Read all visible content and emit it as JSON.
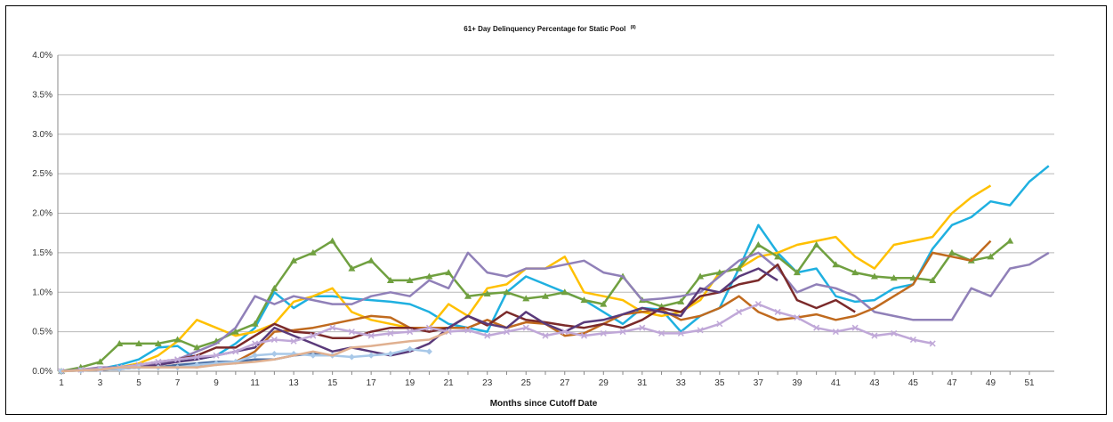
{
  "chart_data": {
    "type": "line",
    "title": "61+ Day Delinquency Percentage for Static Pool",
    "title_note": "(8)",
    "xlabel": "Months since Cutoff Date",
    "ylabel": "",
    "ylim": [
      0,
      4.0
    ],
    "xlim": [
      1,
      51
    ],
    "x_tick_labels": [
      "1",
      "3",
      "5",
      "7",
      "9",
      "11",
      "13",
      "15",
      "17",
      "19",
      "21",
      "23",
      "25",
      "27",
      "29",
      "31",
      "33",
      "35",
      "37",
      "39",
      "41",
      "43",
      "45",
      "47",
      "49",
      "51"
    ],
    "y_tick_labels": [
      "0.0%",
      "0.5%",
      "1.0%",
      "1.5%",
      "2.0%",
      "2.5%",
      "3.0%",
      "3.5%",
      "4.0%"
    ],
    "grid": true,
    "series": [
      {
        "color": "#1fb0e0",
        "marker": "none",
        "x_start": 1,
        "values": [
          0.0,
          0.02,
          0.03,
          0.08,
          0.15,
          0.3,
          0.32,
          0.15,
          0.2,
          0.35,
          0.55,
          1.0,
          0.8,
          0.95,
          0.95,
          0.92,
          0.9,
          0.88,
          0.85,
          0.75,
          0.6,
          0.55,
          0.5,
          1.0,
          1.2,
          1.1,
          1.0,
          0.9,
          0.75,
          0.6,
          0.8,
          0.78,
          0.5,
          0.7,
          0.8,
          1.3,
          1.85,
          1.5,
          1.25,
          1.3,
          0.95,
          0.88,
          0.9,
          1.05,
          1.1,
          1.55,
          1.85,
          1.95,
          2.15,
          2.1,
          2.4,
          2.6
        ]
      },
      {
        "color": "#ffc000",
        "marker": "none",
        "x_start": 1,
        "values": [
          0.0,
          0.02,
          0.03,
          0.05,
          0.1,
          0.2,
          0.38,
          0.65,
          0.55,
          0.45,
          0.5,
          0.6,
          0.88,
          0.95,
          1.05,
          0.75,
          0.65,
          0.6,
          0.55,
          0.55,
          0.85,
          0.7,
          1.05,
          1.1,
          1.3,
          1.3,
          1.45,
          1.0,
          0.95,
          0.9,
          0.75,
          0.7,
          0.75,
          0.9,
          1.25,
          1.3,
          1.45,
          1.5,
          1.6,
          1.65,
          1.7,
          1.45,
          1.3,
          1.6,
          1.65,
          1.7,
          2.0,
          2.2,
          2.35
        ]
      },
      {
        "color": "#70a040",
        "marker": "triangle",
        "x_start": 1,
        "values": [
          0.0,
          0.05,
          0.12,
          0.35,
          0.35,
          0.35,
          0.4,
          0.3,
          0.38,
          0.5,
          0.6,
          1.05,
          1.4,
          1.5,
          1.65,
          1.3,
          1.4,
          1.15,
          1.15,
          1.2,
          1.25,
          0.95,
          0.98,
          1.0,
          0.92,
          0.95,
          1.0,
          0.9,
          0.85,
          1.2,
          0.9,
          0.82,
          0.88,
          1.2,
          1.25,
          1.3,
          1.6,
          1.45,
          1.25,
          1.6,
          1.35,
          1.25,
          1.2,
          1.18,
          1.18,
          1.15,
          1.5,
          1.4,
          1.45,
          1.65
        ]
      },
      {
        "color": "#9080b8",
        "marker": "none",
        "x_start": 1,
        "values": [
          0.0,
          0.02,
          0.05,
          0.05,
          0.08,
          0.1,
          0.15,
          0.25,
          0.35,
          0.55,
          0.95,
          0.85,
          0.95,
          0.9,
          0.85,
          0.85,
          0.95,
          1.0,
          0.95,
          1.15,
          1.05,
          1.5,
          1.25,
          1.2,
          1.3,
          1.3,
          1.35,
          1.4,
          1.25,
          1.2,
          0.9,
          0.92,
          0.95,
          1.0,
          1.2,
          1.4,
          1.5,
          1.3,
          1.0,
          1.1,
          1.05,
          0.95,
          0.75,
          0.7,
          0.65,
          0.65,
          0.65,
          1.05,
          0.95,
          1.3,
          1.35,
          1.5
        ]
      },
      {
        "color": "#c06a1e",
        "marker": "none",
        "x_start": 1,
        "values": [
          0.0,
          0.02,
          0.03,
          0.04,
          0.05,
          0.05,
          0.08,
          0.05,
          0.1,
          0.12,
          0.25,
          0.5,
          0.52,
          0.55,
          0.6,
          0.65,
          0.7,
          0.68,
          0.55,
          0.55,
          0.55,
          0.55,
          0.65,
          0.55,
          0.62,
          0.6,
          0.45,
          0.48,
          0.6,
          0.72,
          0.75,
          0.78,
          0.65,
          0.7,
          0.8,
          0.95,
          0.75,
          0.65,
          0.68,
          0.72,
          0.65,
          0.7,
          0.8,
          0.95,
          1.1,
          1.5,
          1.45,
          1.4,
          1.65
        ]
      },
      {
        "color": "#7b2a2a",
        "marker": "none",
        "x_start": 1,
        "values": [
          0.0,
          0.02,
          0.03,
          0.05,
          0.08,
          0.12,
          0.15,
          0.2,
          0.3,
          0.3,
          0.45,
          0.6,
          0.5,
          0.48,
          0.42,
          0.42,
          0.5,
          0.55,
          0.55,
          0.5,
          0.55,
          0.7,
          0.58,
          0.75,
          0.65,
          0.62,
          0.58,
          0.55,
          0.6,
          0.55,
          0.65,
          0.8,
          0.75,
          0.95,
          1.0,
          1.1,
          1.15,
          1.35,
          0.9,
          0.8,
          0.9,
          0.75
        ]
      },
      {
        "color": "#5a3a7a",
        "marker": "none",
        "x_start": 1,
        "values": [
          0.0,
          0.02,
          0.02,
          0.03,
          0.05,
          0.08,
          0.12,
          0.15,
          0.2,
          0.25,
          0.3,
          0.55,
          0.45,
          0.35,
          0.25,
          0.3,
          0.25,
          0.2,
          0.25,
          0.35,
          0.55,
          0.7,
          0.6,
          0.55,
          0.75,
          0.6,
          0.5,
          0.62,
          0.65,
          0.72,
          0.8,
          0.75,
          0.7,
          1.05,
          1.0,
          1.2,
          1.3,
          1.15
        ]
      },
      {
        "color": "#c0a8d8",
        "marker": "x",
        "x_start": 1,
        "values": [
          0.0,
          0.02,
          0.03,
          0.05,
          0.08,
          0.12,
          0.15,
          0.18,
          0.2,
          0.25,
          0.35,
          0.4,
          0.38,
          0.45,
          0.55,
          0.5,
          0.45,
          0.48,
          0.5,
          0.55,
          0.5,
          0.52,
          0.45,
          0.5,
          0.55,
          0.45,
          0.5,
          0.45,
          0.48,
          0.5,
          0.55,
          0.48,
          0.48,
          0.52,
          0.6,
          0.75,
          0.85,
          0.75,
          0.68,
          0.55,
          0.5,
          0.55,
          0.45,
          0.48,
          0.4,
          0.35
        ]
      },
      {
        "color": "#4a6fa5",
        "marker": "none",
        "x_start": 1,
        "values": [
          0.0,
          0.01,
          0.02,
          0.03,
          0.05,
          0.05,
          0.08,
          0.1,
          0.12,
          0.12,
          0.15,
          0.15,
          0.2,
          0.22,
          0.2
        ]
      },
      {
        "color": "#a8c8e8",
        "marker": "diamond",
        "x_start": 1,
        "values": [
          0.0,
          0.01,
          0.02,
          0.03,
          0.05,
          0.05,
          0.05,
          0.08,
          0.1,
          0.12,
          0.2,
          0.22,
          0.22,
          0.2,
          0.2,
          0.18,
          0.2,
          0.22,
          0.28,
          0.25
        ]
      },
      {
        "color": "#e0b090",
        "marker": "none",
        "x_start": 1,
        "values": [
          0.0,
          0.01,
          0.02,
          0.05,
          0.05,
          0.05,
          0.05,
          0.05,
          0.08,
          0.1,
          0.12,
          0.15,
          0.2,
          0.25,
          0.2,
          0.3,
          0.32,
          0.35,
          0.38,
          0.4,
          0.5
        ]
      }
    ]
  }
}
